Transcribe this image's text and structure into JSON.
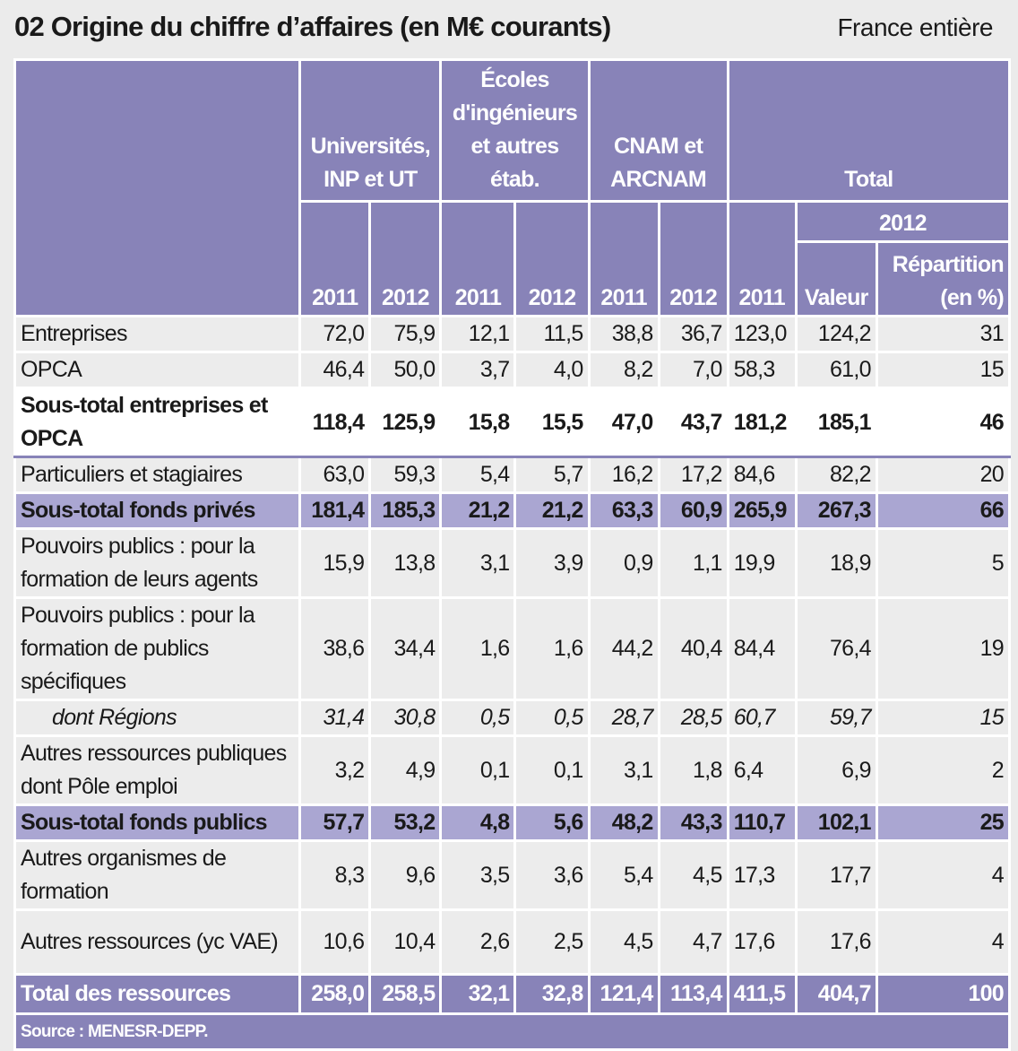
{
  "title": "02   Origine du chiffre d’affaires (en M€ courants)",
  "region": "France entière",
  "headers": {
    "groups": [
      "Universités, INP et UT",
      "Écoles d'ingénieurs et autres étab.",
      "CNAM  et ARCNAM",
      "Total"
    ],
    "y2011": "2011",
    "y2012": "2012",
    "valeur": "Valeur",
    "repartition": "Répartition (en %)"
  },
  "rows": [
    {
      "label": "Entreprises",
      "style": "",
      "values": [
        "72,0",
        "75,9",
        "12,1",
        "11,5",
        "38,8",
        "36,7",
        "123,0",
        "124,2",
        "31"
      ]
    },
    {
      "label": "OPCA",
      "style": "",
      "values": [
        "46,4",
        "50,0",
        "3,7",
        "4,0",
        "8,2",
        "7,0",
        "58,3",
        "61,0",
        "15"
      ]
    },
    {
      "label": "Sous-total entreprises et OPCA",
      "style": "bold white",
      "values": [
        "118,4",
        "125,9",
        "15,8",
        "15,5",
        "47,0",
        "43,7",
        "181,2",
        "185,1",
        "46"
      ]
    },
    {
      "label": "Particuliers et stagiaires",
      "style": "",
      "values": [
        "63,0",
        "59,3",
        "5,4",
        "5,7",
        "16,2",
        "17,2",
        "84,6",
        "82,2",
        "20"
      ]
    },
    {
      "label": "Sous-total fonds privés",
      "style": "sub",
      "values": [
        "181,4",
        "185,3",
        "21,2",
        "21,2",
        "63,3",
        "60,9",
        "265,9",
        "267,3",
        "66"
      ]
    },
    {
      "label": "Pouvoirs publics : pour la formation de leurs agents",
      "style": "",
      "values": [
        "15,9",
        "13,8",
        "3,1",
        "3,9",
        "0,9",
        "1,1",
        "19,9",
        "18,9",
        "5"
      ]
    },
    {
      "label": "Pouvoirs publics : pour la formation de publics spécifiques",
      "style": "",
      "values": [
        "38,6",
        "34,4",
        "1,6",
        "1,6",
        "44,2",
        "40,4",
        "84,4",
        "76,4",
        "19"
      ]
    },
    {
      "label": "dont Régions",
      "style": "ital",
      "values": [
        "31,4",
        "30,8",
        "0,5",
        "0,5",
        "28,7",
        "28,5",
        "60,7",
        "59,7",
        "15"
      ]
    },
    {
      "label": "Autres ressources publiques dont Pôle emploi",
      "style": "",
      "values": [
        "3,2",
        "4,9",
        "0,1",
        "0,1",
        "3,1",
        "1,8",
        "6,4",
        "6,9",
        "2"
      ]
    },
    {
      "label": "Sous-total fonds publics",
      "style": "sub",
      "values": [
        "57,7",
        "53,2",
        "4,8",
        "5,6",
        "48,2",
        "43,3",
        "110,7",
        "102,1",
        "25"
      ]
    },
    {
      "label": "Autres organismes de formation",
      "style": "",
      "values": [
        "8,3",
        "9,6",
        "3,5",
        "3,6",
        "5,4",
        "4,5",
        "17,3",
        "17,7",
        "4"
      ]
    },
    {
      "label": "Autres ressources (yc VAE)",
      "style": "",
      "values": [
        "10,6",
        "10,4",
        "2,6",
        "2,5",
        "4,5",
        "4,7",
        "17,6",
        "17,6",
        "4"
      ]
    },
    {
      "label": "Total des ressources",
      "style": "total",
      "values": [
        "258,0",
        "258,5",
        "32,1",
        "32,8",
        "121,4",
        "113,4",
        "411,5",
        "404,7",
        "100"
      ]
    }
  ],
  "source": "Source : MENESR-DEPP."
}
